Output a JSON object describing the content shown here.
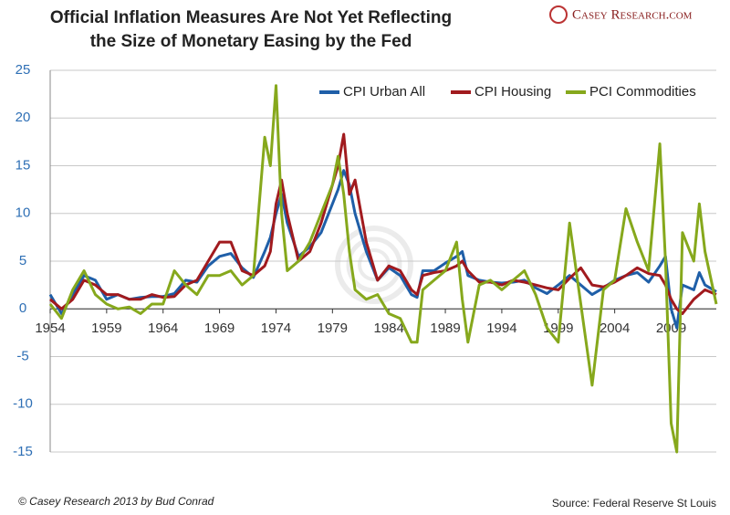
{
  "chart_data": {
    "type": "line",
    "title": [
      "Official Inflation Measures Are Not Yet Reflecting",
      "the Size of Monetary Easing by the Fed"
    ],
    "brand": "Casey Research.com",
    "footer_left": "© Casey Research 2013 by Bud Conrad",
    "footer_right": "Source: Federal Reserve St Louis",
    "x": [
      1954,
      1955,
      1956,
      1957,
      1958,
      1959,
      1960,
      1961,
      1962,
      1963,
      1964,
      1965,
      1966,
      1967,
      1968,
      1969,
      1970,
      1971,
      1972,
      1973,
      1973.5,
      1974,
      1974.5,
      1975,
      1976,
      1977,
      1978,
      1979,
      1979.5,
      1980,
      1980.5,
      1981,
      1982,
      1983,
      1984,
      1985,
      1986,
      1986.5,
      1987,
      1988,
      1989,
      1990,
      1990.5,
      1991,
      1992,
      1993,
      1994,
      1995,
      1996,
      1997,
      1998,
      1999,
      2000,
      2001,
      2002,
      2003,
      2004,
      2005,
      2006,
      2007,
      2008,
      2008.5,
      2009,
      2009.5,
      2010,
      2011,
      2011.5,
      2012,
      2013
    ],
    "series": [
      {
        "name": "CPI Urban All",
        "color": "#1f5fa8",
        "values": [
          1.5,
          -0.5,
          1.5,
          3.5,
          3,
          1,
          1.5,
          1,
          1.2,
          1.3,
          1.3,
          1.6,
          3,
          2.8,
          4.5,
          5.5,
          5.8,
          4.3,
          3.3,
          6,
          7.5,
          10,
          12,
          9,
          5.5,
          6.5,
          8,
          11,
          12.5,
          14.5,
          13,
          10,
          6,
          3,
          4.3,
          3.5,
          1.5,
          1.2,
          4,
          4,
          4.8,
          5.5,
          6,
          3.5,
          3,
          2.8,
          2.7,
          2.8,
          3,
          2.2,
          1.6,
          2.5,
          3.5,
          2.5,
          1.5,
          2.2,
          3,
          3.5,
          3.8,
          2.8,
          4.5,
          5.5,
          0,
          -2,
          2.5,
          2,
          3.8,
          2.5,
          1.8
        ]
      },
      {
        "name": "CPI Housing",
        "color": "#a11a1e",
        "values": [
          1,
          0,
          1,
          3,
          2.5,
          1.5,
          1.5,
          1,
          1,
          1.5,
          1.2,
          1.3,
          2.5,
          3,
          5,
          7,
          7,
          4,
          3.5,
          4.5,
          6,
          11,
          13.5,
          10,
          5,
          6,
          9,
          13,
          15,
          18.3,
          12,
          13.5,
          7,
          3,
          4.5,
          4,
          2,
          1.5,
          3.5,
          3.8,
          4,
          4.5,
          5,
          4,
          2.8,
          2.8,
          2.5,
          3,
          2.8,
          2.5,
          2.2,
          2,
          3.2,
          4.3,
          2.5,
          2.3,
          2.8,
          3.5,
          4.3,
          3.7,
          3.5,
          2.5,
          1,
          0,
          -0.5,
          1,
          1.5,
          2,
          1.5
        ]
      },
      {
        "name": "PCI Commodities",
        "color": "#86a81c",
        "values": [
          0.5,
          -1,
          2,
          4,
          1.5,
          0.5,
          0,
          0.2,
          -0.5,
          0.5,
          0.5,
          4,
          2.5,
          1.5,
          3.5,
          3.5,
          4,
          2.5,
          3.5,
          18,
          15,
          23.4,
          10,
          4,
          5,
          7,
          10,
          13,
          16,
          12,
          6,
          2,
          1,
          1.5,
          -0.5,
          -1,
          -3.5,
          -3.5,
          2,
          3,
          4,
          7,
          1,
          -3.5,
          2.5,
          3,
          2,
          3,
          4,
          1.5,
          -2,
          -3.5,
          9,
          0.5,
          -8,
          2,
          3,
          10.5,
          7,
          4,
          17.3,
          5,
          -12,
          -15,
          8,
          5,
          11,
          6,
          0.5
        ]
      }
    ],
    "xlim": [
      1954,
      2013
    ],
    "xticks": [
      1954,
      1959,
      1964,
      1969,
      1974,
      1979,
      1984,
      1989,
      1994,
      1999,
      2004,
      2009
    ],
    "ylim": [
      -15,
      25
    ],
    "yticks": [
      -15,
      -10,
      -5,
      0,
      5,
      10,
      15,
      20,
      25
    ],
    "grid": true,
    "legend": "top-right"
  }
}
